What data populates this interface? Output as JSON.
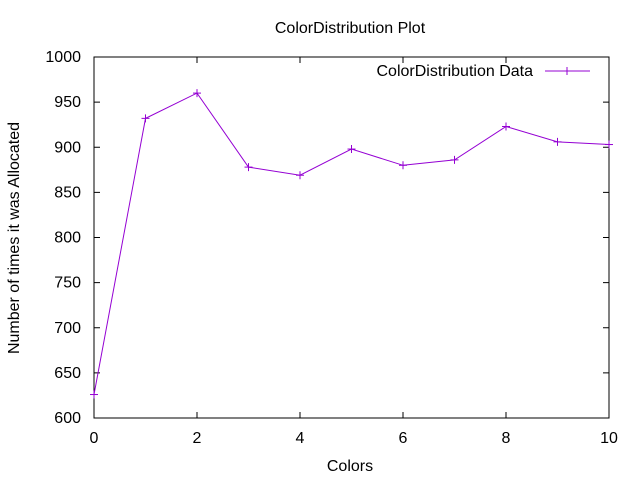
{
  "chart_data": {
    "type": "line",
    "title": "ColorDistribution Plot",
    "xlabel": "Colors",
    "ylabel": "Number of times it was Allocated",
    "xlim": [
      0,
      10
    ],
    "ylim": [
      600,
      1000
    ],
    "x_ticks": [
      0,
      2,
      4,
      6,
      8,
      10
    ],
    "y_ticks": [
      600,
      650,
      700,
      750,
      800,
      850,
      900,
      950,
      1000
    ],
    "grid": false,
    "legend_position": "top-right",
    "series": [
      {
        "name": "ColorDistribution Data",
        "color": "#9400d3",
        "marker": "plus",
        "x": [
          0,
          1,
          2,
          3,
          4,
          5,
          6,
          7,
          8,
          9,
          10
        ],
        "y": [
          626,
          932,
          960,
          878,
          869,
          898,
          880,
          886,
          923,
          906,
          903
        ]
      }
    ]
  }
}
